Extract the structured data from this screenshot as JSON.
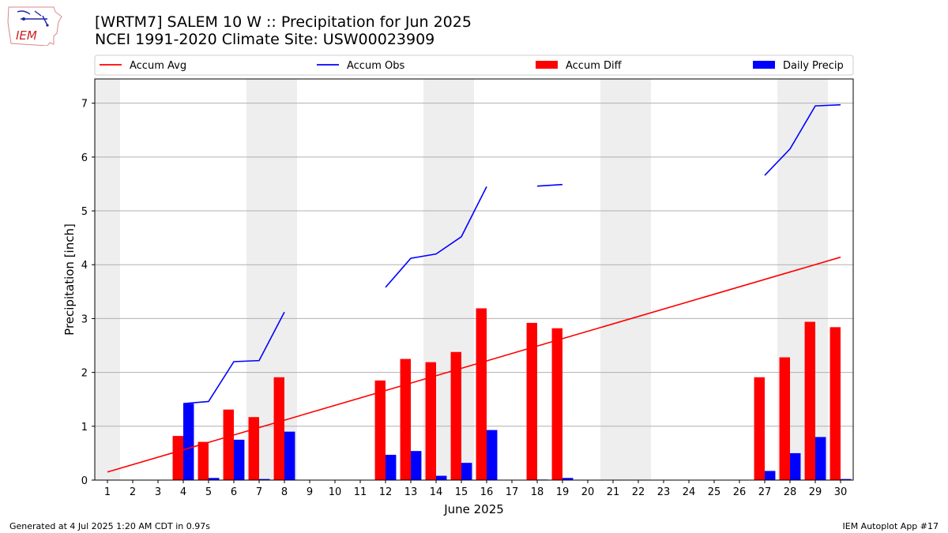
{
  "header": {
    "title_line1": "[WRTM7] SALEM 10 W :: Precipitation for Jun 2025",
    "title_line2": "NCEI 1991-2020 Climate Site: USW00023909"
  },
  "logo": {
    "text": "IEM",
    "icon": "iem-iowa-logo-icon"
  },
  "footer": {
    "generated": "Generated at 4 Jul 2025 1:20 AM CDT in 0.97s",
    "app": "IEM Autoplot App #17"
  },
  "colors": {
    "accum_avg": "#ff0000",
    "accum_obs": "#0000ff",
    "accum_diff": "#ff0000",
    "daily_precip": "#0000ff",
    "weekend_shade": "#eeeeee",
    "grid": "#b0b0b0"
  },
  "chart_data": {
    "type": "bar",
    "xlabel": "June 2025",
    "ylabel": "Precipitation [inch]",
    "xlim": [
      0.5,
      30.5
    ],
    "ylim": [
      0,
      7.45
    ],
    "x_ticks": [
      1,
      2,
      3,
      4,
      5,
      6,
      7,
      8,
      9,
      10,
      11,
      12,
      13,
      14,
      15,
      16,
      17,
      18,
      19,
      20,
      21,
      22,
      23,
      24,
      25,
      26,
      27,
      28,
      29,
      30
    ],
    "y_ticks": [
      0,
      1,
      2,
      3,
      4,
      5,
      6,
      7
    ],
    "grid": "horizontal",
    "legend": {
      "placement": "top",
      "columns": 4
    },
    "weekend_days": [
      1,
      7,
      8,
      14,
      15,
      21,
      22,
      28,
      29
    ],
    "series": [
      {
        "name": "Accum Avg",
        "kind": "line",
        "color": "#ff0000",
        "x": [
          1,
          30
        ],
        "values": [
          0.15,
          4.14
        ]
      },
      {
        "name": "Accum Obs",
        "kind": "line",
        "color": "#0000ff",
        "segments": [
          {
            "x": [
              4,
              5,
              6,
              7,
              8
            ],
            "values": [
              1.42,
              1.46,
              2.2,
              2.22,
              3.12
            ]
          },
          {
            "x": [
              12,
              13,
              14,
              15,
              16
            ],
            "values": [
              3.58,
              4.12,
              4.2,
              4.52,
              5.45
            ]
          },
          {
            "x": [
              18,
              19
            ],
            "values": [
              5.46,
              5.49
            ]
          },
          {
            "x": [
              27,
              28,
              29,
              30
            ],
            "values": [
              5.66,
              6.15,
              6.95,
              6.97
            ]
          }
        ]
      },
      {
        "name": "Accum Diff",
        "kind": "bar",
        "color": "#ff0000",
        "x": [
          4,
          5,
          6,
          7,
          8,
          12,
          13,
          14,
          15,
          16,
          18,
          19,
          27,
          28,
          29,
          30
        ],
        "values": [
          0.82,
          0.71,
          1.31,
          1.17,
          1.91,
          1.85,
          2.25,
          2.19,
          2.38,
          3.19,
          2.92,
          2.82,
          1.91,
          2.28,
          2.94,
          2.84
        ]
      },
      {
        "name": "Daily Precip",
        "kind": "bar",
        "color": "#0000ff",
        "x": [
          4,
          5,
          6,
          7,
          8,
          12,
          13,
          14,
          15,
          16,
          18,
          19,
          27,
          28,
          29,
          30
        ],
        "values": [
          1.42,
          0.04,
          0.75,
          0.02,
          0.9,
          0.47,
          0.54,
          0.08,
          0.32,
          0.93,
          0.01,
          0.04,
          0.17,
          0.5,
          0.8,
          0.02
        ]
      }
    ]
  }
}
